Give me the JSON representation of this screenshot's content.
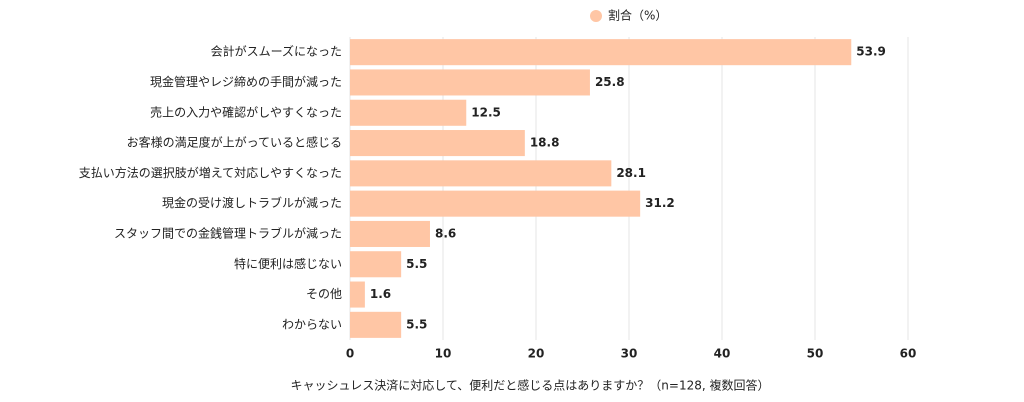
{
  "chart_data": {
    "type": "hbar",
    "xlabel": "キャッシュレス決済に対応して、便利だと感じる点はありますか？（n=128, 複数回答）",
    "categories": [
      "会計がスムーズになった",
      "現金管理やレジ締めの手間が減った",
      "売上の入力や確認がしやすくなった",
      "お客様の満足度が上がっていると感じる",
      "支払い方法の選択肢が増えて対応しやすくなった",
      "現金の受け渡しトラブルが減った",
      "スタッフ間での金銭管理トラブルが減った",
      "特に便利は感じない",
      "その他",
      "わからない"
    ],
    "series": [
      {
        "name": "割合（%）",
        "color": "#ffc6a5",
        "values": [
          53.9,
          25.8,
          12.5,
          18.8,
          28.1,
          31.2,
          8.6,
          5.5,
          1.6,
          5.5
        ]
      }
    ],
    "xlim": [
      0,
      60
    ],
    "xticks": [
      0,
      10,
      20,
      30,
      40,
      50,
      60
    ],
    "grid": true,
    "legend": "top"
  }
}
